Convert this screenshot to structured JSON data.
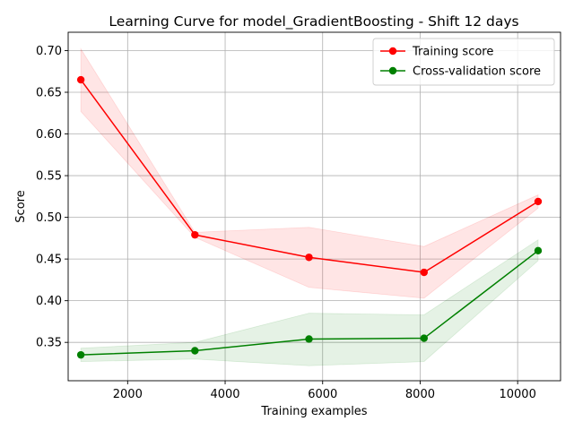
{
  "chart_data": {
    "type": "line",
    "title": "Learning Curve for model_GradientBoosting - Shift 12 days",
    "xlabel": "Training examples",
    "ylabel": "Score",
    "xlim": [
      780,
      10880
    ],
    "ylim": [
      0.304,
      0.722
    ],
    "xticks": [
      2000,
      4000,
      6000,
      8000,
      10000
    ],
    "yticks": [
      0.35,
      0.4,
      0.45,
      0.5,
      0.55,
      0.6,
      0.65,
      0.7
    ],
    "ytick_labels": [
      "0.35",
      "0.40",
      "0.45",
      "0.50",
      "0.55",
      "0.60",
      "0.65",
      "0.70"
    ],
    "grid": true,
    "legend_position": "top-right",
    "x": [
      1040,
      3380,
      5720,
      8080,
      10420
    ],
    "series": [
      {
        "name": "Training score",
        "color": "#ff0000",
        "band_color": "#ff0000",
        "values": [
          0.665,
          0.479,
          0.452,
          0.434,
          0.519
        ],
        "band_low": [
          0.627,
          0.476,
          0.416,
          0.403,
          0.511
        ],
        "band_high": [
          0.702,
          0.482,
          0.488,
          0.465,
          0.527
        ]
      },
      {
        "name": "Cross-validation score",
        "color": "#008000",
        "band_color": "#008000",
        "values": [
          0.335,
          0.34,
          0.354,
          0.355,
          0.46
        ],
        "band_low": [
          0.327,
          0.33,
          0.322,
          0.327,
          0.448
        ],
        "band_high": [
          0.343,
          0.35,
          0.385,
          0.383,
          0.473
        ]
      }
    ]
  }
}
